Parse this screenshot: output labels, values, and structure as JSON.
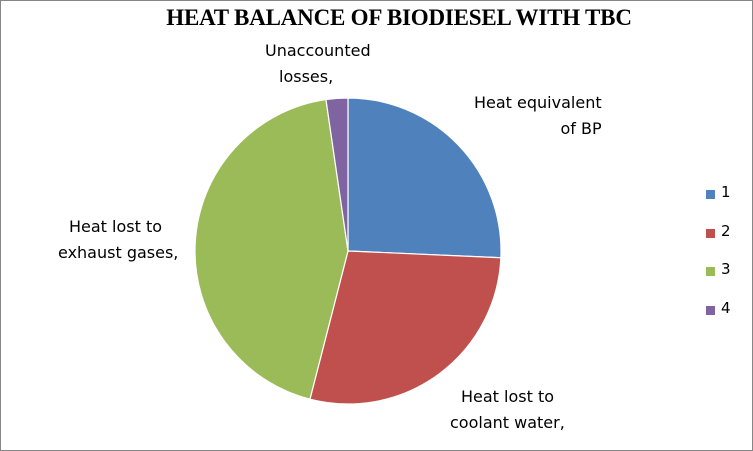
{
  "chart_data": {
    "type": "pie",
    "title": "HEAT BALANCE OF BIODIESEL WITH TBC",
    "slices": [
      {
        "legend": "1",
        "label": [
          "Heat equivalent",
          "of BP"
        ],
        "value": 25.7,
        "color": "#4F81BD"
      },
      {
        "legend": "2",
        "label": [
          "Heat lost to",
          "coolant water,"
        ],
        "value": 28.3,
        "color": "#C0504D"
      },
      {
        "legend": "3",
        "label": [
          "Heat lost to",
          "exhaust gases,"
        ],
        "value": 43.7,
        "color": "#9BBB59"
      },
      {
        "legend": "4",
        "label": [
          "Unaccounted",
          "losses,"
        ],
        "value": 2.3,
        "color": "#8064A2"
      }
    ],
    "legend_position": "right"
  }
}
